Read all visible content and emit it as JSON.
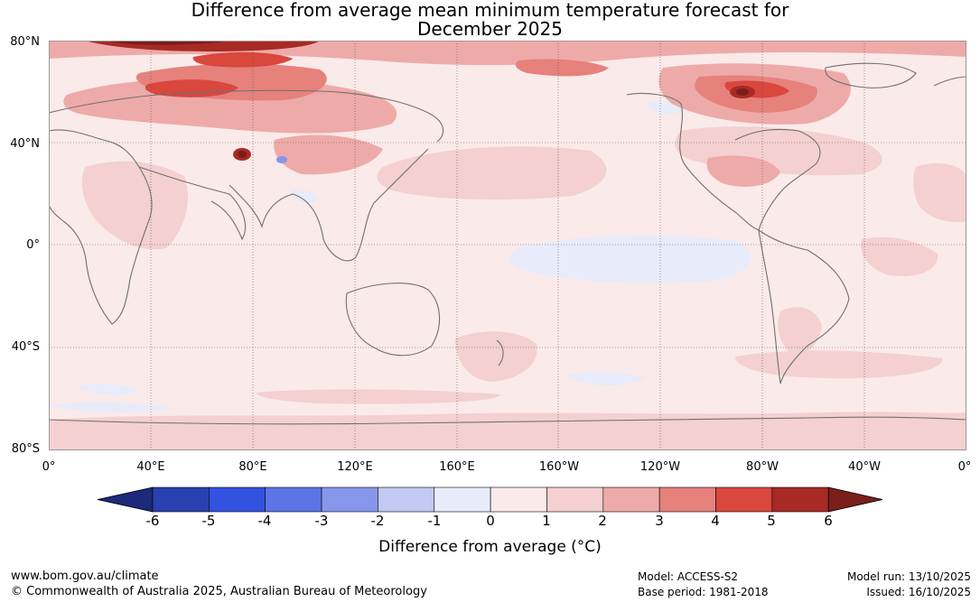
{
  "title_line1": "Difference from average mean minimum temperature forecast for",
  "title_line2": "December 2025",
  "lat_labels": [
    "80°N",
    "40°N",
    "0°",
    "40°S",
    "80°S"
  ],
  "lon_labels": [
    "0°",
    "40°E",
    "80°E",
    "120°E",
    "160°E",
    "160°W",
    "120°W",
    "80°W",
    "40°W",
    "0°"
  ],
  "colorbar": {
    "title": "Difference from average (°C)",
    "ticks": [
      "-6",
      "-5",
      "-4",
      "-3",
      "-2",
      "-1",
      "0",
      "1",
      "2",
      "3",
      "4",
      "5",
      "6"
    ],
    "colors": [
      "#1b2a7a",
      "#2a3fb0",
      "#3352e0",
      "#5c75e6",
      "#8796ea",
      "#c2c9f2",
      "#e8ebfa",
      "#fbeaea",
      "#f4d0d0",
      "#eeaaa8",
      "#e6817c",
      "#d9473d",
      "#a82a24",
      "#7a1e1a"
    ]
  },
  "footer": {
    "url": "www.bom.gov.au/climate",
    "copyright": "© Commonwealth of Australia 2025, Australian Bureau of Meteorology",
    "model": "Model: ACCESS-S2",
    "base_period": "Base period: 1981-2018",
    "model_run": "Model run: 13/10/2025",
    "issued": "Issued: 16/10/2025"
  }
}
